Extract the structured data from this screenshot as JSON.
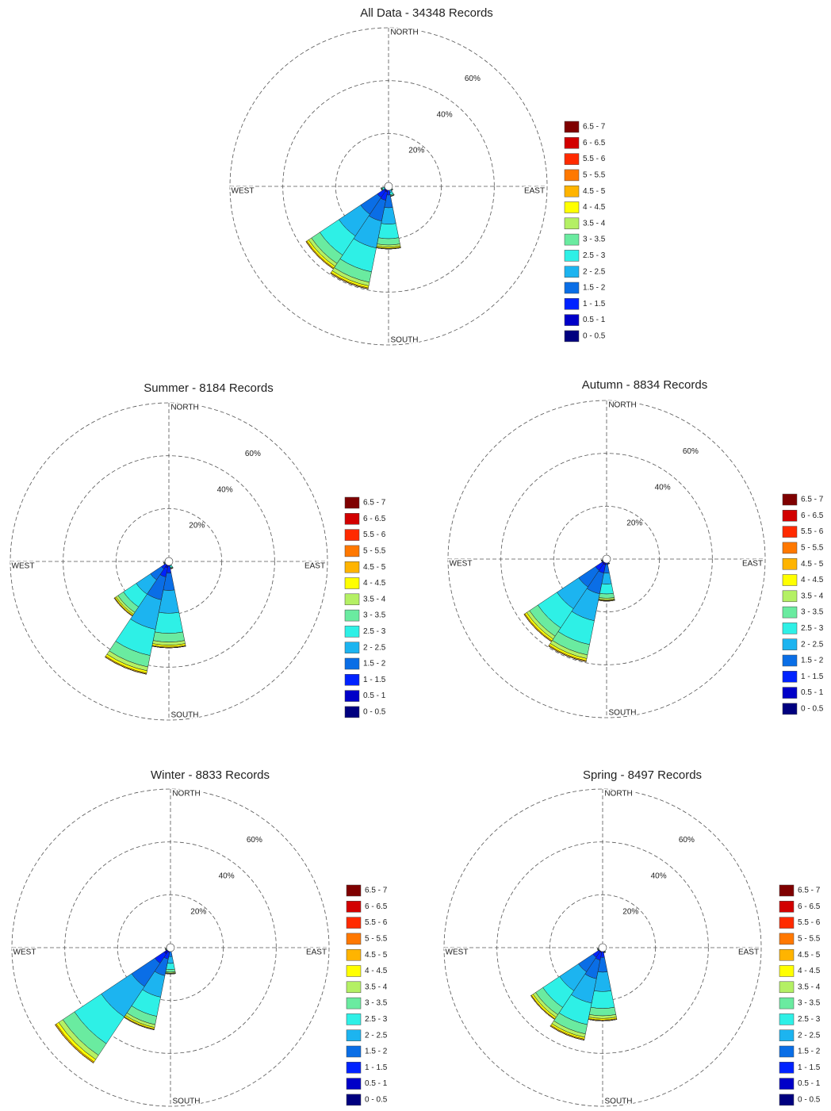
{
  "chart_data": [
    {
      "type": "windrose",
      "title": "All Data - 34348 Records",
      "direction_labels": [
        "NORTH",
        "EAST",
        "SOUTH",
        "WEST"
      ],
      "rlim": [
        0,
        60
      ],
      "rticks": [
        {
          "value": 20,
          "label": "20%"
        },
        {
          "value": 40,
          "label": "40%"
        },
        {
          "value": 60,
          "label": "60%"
        }
      ],
      "series": [
        {
          "name": "0 - 0.5",
          "color": "#00007f"
        },
        {
          "name": "0.5 - 1",
          "color": "#0000c8"
        },
        {
          "name": "1 - 1.5",
          "color": "#0022ff"
        },
        {
          "name": "1.5 - 2",
          "color": "#0a6ee6"
        },
        {
          "name": "2 - 2.5",
          "color": "#1cb4f0"
        },
        {
          "name": "2.5 - 3",
          "color": "#2ef0e6"
        },
        {
          "name": "3 - 3.5",
          "color": "#6aeba0"
        },
        {
          "name": "3.5 - 4",
          "color": "#b4f064"
        },
        {
          "name": "4 - 4.5",
          "color": "#ffff00"
        },
        {
          "name": "4.5 - 5",
          "color": "#ffb400"
        },
        {
          "name": "5 - 5.5",
          "color": "#ff7800"
        },
        {
          "name": "5.5 - 6",
          "color": "#ff2a00"
        },
        {
          "name": "6 - 6.5",
          "color": "#d20000"
        },
        {
          "name": "6.5 - 7",
          "color": "#7f0000"
        }
      ],
      "sectors": [
        {
          "direction": 135,
          "values": [
            0,
            0.1,
            0.2,
            0.4,
            0.5,
            0.5,
            0.2,
            0.1,
            0,
            0,
            0,
            0,
            0,
            0
          ]
        },
        {
          "direction": 157.5,
          "values": [
            0.1,
            0.2,
            0.3,
            0.8,
            1,
            0.9,
            0.4,
            0.1,
            0.1,
            0,
            0,
            0,
            0,
            0
          ]
        },
        {
          "direction": 180,
          "values": [
            0.4,
            1,
            1.9,
            4.8,
            6.2,
            5.5,
            2.4,
            0.8,
            0.5,
            0.2,
            0,
            0,
            0,
            0
          ]
        },
        {
          "direction": 202.5,
          "values": [
            0.6,
            1.6,
            3.2,
            8,
            10.4,
            9.2,
            4,
            1.4,
            0.8,
            0.4,
            0,
            0,
            0,
            0
          ]
        },
        {
          "direction": 225,
          "values": [
            0.6,
            1.5,
            3,
            7.6,
            9.9,
            8.7,
            3.8,
            1.3,
            0.8,
            0.4,
            0,
            0,
            0,
            0
          ]
        },
        {
          "direction": 247.5,
          "values": [
            0,
            0.1,
            0.2,
            0.6,
            0.8,
            0.7,
            0.3,
            0.1,
            0.1,
            0,
            0,
            0,
            0,
            0
          ]
        }
      ]
    },
    {
      "type": "windrose",
      "title": "Summer - 8184 Records",
      "direction_labels": [
        "NORTH",
        "EAST",
        "SOUTH",
        "WEST"
      ],
      "rlim": [
        0,
        60
      ],
      "rticks": [
        {
          "value": 20,
          "label": "20%"
        },
        {
          "value": 40,
          "label": "40%"
        },
        {
          "value": 60,
          "label": "60%"
        }
      ],
      "series": [
        {
          "name": "0 - 0.5",
          "color": "#00007f"
        },
        {
          "name": "0.5 - 1",
          "color": "#0000c8"
        },
        {
          "name": "1 - 1.5",
          "color": "#0022ff"
        },
        {
          "name": "1.5 - 2",
          "color": "#0a6ee6"
        },
        {
          "name": "2 - 2.5",
          "color": "#1cb4f0"
        },
        {
          "name": "2.5 - 3",
          "color": "#2ef0e6"
        },
        {
          "name": "3 - 3.5",
          "color": "#6aeba0"
        },
        {
          "name": "3.5 - 4",
          "color": "#b4f064"
        },
        {
          "name": "4 - 4.5",
          "color": "#ffff00"
        },
        {
          "name": "4.5 - 5",
          "color": "#ffb400"
        },
        {
          "name": "5 - 5.5",
          "color": "#ff7800"
        },
        {
          "name": "5.5 - 6",
          "color": "#ff2a00"
        },
        {
          "name": "6 - 6.5",
          "color": "#d20000"
        },
        {
          "name": "6.5 - 7",
          "color": "#7f0000"
        }
      ],
      "sectors": [
        {
          "direction": 135,
          "values": [
            0,
            0,
            0.1,
            0.2,
            0.3,
            0.2,
            0.1,
            0,
            0,
            0,
            0,
            0,
            0,
            0
          ]
        },
        {
          "direction": 157.5,
          "values": [
            0,
            0.1,
            0.2,
            0.6,
            0.8,
            0.7,
            0.3,
            0.1,
            0.1,
            0,
            0,
            0,
            0,
            0
          ]
        },
        {
          "direction": 180,
          "values": [
            0.5,
            1.3,
            2.6,
            6.6,
            8.6,
            7.6,
            3.3,
            1.2,
            0.7,
            0.3,
            0,
            0,
            0,
            0
          ]
        },
        {
          "direction": 202.5,
          "values": [
            0.7,
            1.8,
            3.5,
            8.8,
            11.4,
            10.1,
            4.4,
            1.5,
            0.9,
            0.4,
            0,
            0,
            0,
            0
          ]
        },
        {
          "direction": 225,
          "values": [
            0.4,
            1,
            2,
            5,
            6.5,
            5.8,
            2.5,
            0.9,
            0.5,
            0.3,
            0,
            0,
            0,
            0
          ]
        },
        {
          "direction": 247.5,
          "values": [
            0,
            0.1,
            0.2,
            0.4,
            0.5,
            0.5,
            0.2,
            0.1,
            0,
            0,
            0,
            0,
            0,
            0
          ]
        }
      ]
    },
    {
      "type": "windrose",
      "title": "Autumn - 8834 Records",
      "direction_labels": [
        "NORTH",
        "EAST",
        "SOUTH",
        "WEST"
      ],
      "rlim": [
        0,
        60
      ],
      "rticks": [
        {
          "value": 20,
          "label": "20%"
        },
        {
          "value": 40,
          "label": "40%"
        },
        {
          "value": 60,
          "label": "60%"
        }
      ],
      "series": [
        {
          "name": "0 - 0.5",
          "color": "#00007f"
        },
        {
          "name": "0.5 - 1",
          "color": "#0000c8"
        },
        {
          "name": "1 - 1.5",
          "color": "#0022ff"
        },
        {
          "name": "1.5 - 2",
          "color": "#0a6ee6"
        },
        {
          "name": "2 - 2.5",
          "color": "#1cb4f0"
        },
        {
          "name": "2.5 - 3",
          "color": "#2ef0e6"
        },
        {
          "name": "3 - 3.5",
          "color": "#6aeba0"
        },
        {
          "name": "3.5 - 4",
          "color": "#b4f064"
        },
        {
          "name": "4 - 4.5",
          "color": "#ffff00"
        },
        {
          "name": "4.5 - 5",
          "color": "#ffb400"
        },
        {
          "name": "5 - 5.5",
          "color": "#ff7800"
        },
        {
          "name": "5.5 - 6",
          "color": "#ff2a00"
        },
        {
          "name": "6 - 6.5",
          "color": "#d20000"
        },
        {
          "name": "6.5 - 7",
          "color": "#7f0000"
        }
      ],
      "sectors": [
        {
          "direction": 135,
          "values": [
            0,
            0,
            0.1,
            0.2,
            0.3,
            0.2,
            0.1,
            0,
            0,
            0,
            0,
            0,
            0,
            0
          ]
        },
        {
          "direction": 157.5,
          "values": [
            0,
            0.1,
            0.2,
            0.4,
            0.5,
            0.5,
            0.2,
            0.1,
            0,
            0,
            0,
            0,
            0,
            0
          ]
        },
        {
          "direction": 180,
          "values": [
            0.2,
            0.6,
            1.3,
            3.2,
            4.2,
            3.7,
            1.6,
            0.6,
            0.3,
            0.2,
            0,
            0,
            0,
            0
          ]
        },
        {
          "direction": 202.5,
          "values": [
            0.6,
            1.6,
            3.2,
            8,
            10.4,
            9.2,
            4,
            1.4,
            0.8,
            0.4,
            0,
            0,
            0,
            0
          ]
        },
        {
          "direction": 225,
          "values": [
            0.6,
            1.5,
            3,
            7.6,
            9.9,
            8.7,
            3.8,
            1.3,
            0.8,
            0.4,
            0,
            0,
            0,
            0
          ]
        },
        {
          "direction": 247.5,
          "values": [
            0,
            0.1,
            0.2,
            0.4,
            0.5,
            0.5,
            0.2,
            0.1,
            0,
            0,
            0,
            0,
            0,
            0
          ]
        }
      ]
    },
    {
      "type": "windrose",
      "title": "Winter - 8833 Records",
      "direction_labels": [
        "NORTH",
        "EAST",
        "SOUTH",
        "WEST"
      ],
      "rlim": [
        0,
        60
      ],
      "rticks": [
        {
          "value": 20,
          "label": "20%"
        },
        {
          "value": 40,
          "label": "40%"
        },
        {
          "value": 60,
          "label": "60%"
        }
      ],
      "series": [
        {
          "name": "0 - 0.5",
          "color": "#00007f"
        },
        {
          "name": "0.5 - 1",
          "color": "#0000c8"
        },
        {
          "name": "1 - 1.5",
          "color": "#0022ff"
        },
        {
          "name": "1.5 - 2",
          "color": "#0a6ee6"
        },
        {
          "name": "2 - 2.5",
          "color": "#1cb4f0"
        },
        {
          "name": "2.5 - 3",
          "color": "#2ef0e6"
        },
        {
          "name": "3 - 3.5",
          "color": "#6aeba0"
        },
        {
          "name": "3.5 - 4",
          "color": "#b4f064"
        },
        {
          "name": "4 - 4.5",
          "color": "#ffff00"
        },
        {
          "name": "4.5 - 5",
          "color": "#ffb400"
        },
        {
          "name": "5 - 5.5",
          "color": "#ff7800"
        },
        {
          "name": "5.5 - 6",
          "color": "#ff2a00"
        },
        {
          "name": "6 - 6.5",
          "color": "#d20000"
        },
        {
          "name": "6.5 - 7",
          "color": "#7f0000"
        }
      ],
      "sectors": [
        {
          "direction": 135,
          "values": [
            0,
            0,
            0.1,
            0.2,
            0.3,
            0.2,
            0.1,
            0,
            0,
            0,
            0,
            0,
            0,
            0
          ]
        },
        {
          "direction": 157.5,
          "values": [
            0,
            0,
            0.1,
            0.2,
            0.3,
            0.2,
            0.1,
            0,
            0,
            0,
            0,
            0,
            0,
            0
          ]
        },
        {
          "direction": 180,
          "values": [
            0.2,
            0.4,
            0.8,
            2,
            2.6,
            2.3,
            1,
            0.4,
            0.2,
            0.1,
            0,
            0,
            0,
            0
          ]
        },
        {
          "direction": 202.5,
          "values": [
            0.5,
            1.3,
            2.6,
            6.4,
            8.3,
            7.4,
            3.2,
            1.1,
            0.6,
            0.3,
            0,
            0,
            0,
            0
          ]
        },
        {
          "direction": 225,
          "values": [
            0.8,
            2.1,
            4.2,
            10.6,
            13.8,
            12.2,
            5.3,
            1.9,
            1.1,
            0.5,
            0,
            0,
            0,
            0
          ]
        },
        {
          "direction": 247.5,
          "values": [
            0,
            0.1,
            0.2,
            0.4,
            0.5,
            0.5,
            0.2,
            0.1,
            0,
            0,
            0,
            0,
            0,
            0
          ]
        }
      ]
    },
    {
      "type": "windrose",
      "title": "Spring - 8497 Records",
      "direction_labels": [
        "NORTH",
        "EAST",
        "SOUTH",
        "WEST"
      ],
      "rlim": [
        0,
        60
      ],
      "rticks": [
        {
          "value": 20,
          "label": "20%"
        },
        {
          "value": 40,
          "label": "40%"
        },
        {
          "value": 60,
          "label": "60%"
        }
      ],
      "series": [
        {
          "name": "0 - 0.5",
          "color": "#00007f"
        },
        {
          "name": "0.5 - 1",
          "color": "#0000c8"
        },
        {
          "name": "1 - 1.5",
          "color": "#0022ff"
        },
        {
          "name": "1.5 - 2",
          "color": "#0a6ee6"
        },
        {
          "name": "2 - 2.5",
          "color": "#1cb4f0"
        },
        {
          "name": "2.5 - 3",
          "color": "#2ef0e6"
        },
        {
          "name": "3 - 3.5",
          "color": "#6aeba0"
        },
        {
          "name": "3.5 - 4",
          "color": "#b4f064"
        },
        {
          "name": "4 - 4.5",
          "color": "#ffff00"
        },
        {
          "name": "4.5 - 5",
          "color": "#ffb400"
        },
        {
          "name": "5 - 5.5",
          "color": "#ff7800"
        },
        {
          "name": "5.5 - 6",
          "color": "#ff2a00"
        },
        {
          "name": "6 - 6.5",
          "color": "#d20000"
        },
        {
          "name": "6.5 - 7",
          "color": "#7f0000"
        }
      ],
      "sectors": [
        {
          "direction": 135,
          "values": [
            0,
            0,
            0.1,
            0.2,
            0.3,
            0.2,
            0.1,
            0,
            0,
            0,
            0,
            0,
            0,
            0
          ]
        },
        {
          "direction": 157.5,
          "values": [
            0,
            0.1,
            0.2,
            0.4,
            0.5,
            0.5,
            0.2,
            0.1,
            0,
            0,
            0,
            0,
            0,
            0
          ]
        },
        {
          "direction": 180,
          "values": [
            0.4,
            1.1,
            2.2,
            5.6,
            7.3,
            6.4,
            2.8,
            1,
            0.6,
            0.3,
            0,
            0,
            0,
            0
          ]
        },
        {
          "direction": 202.5,
          "values": [
            0.5,
            1.4,
            2.9,
            7.2,
            9.4,
            8.3,
            3.6,
            1.3,
            0.7,
            0.4,
            0,
            0,
            0,
            0
          ]
        },
        {
          "direction": 225,
          "values": [
            0.5,
            1.3,
            2.6,
            6.6,
            8.6,
            7.6,
            3.3,
            1.2,
            0.7,
            0.3,
            0,
            0,
            0,
            0
          ]
        },
        {
          "direction": 247.5,
          "values": [
            0,
            0.1,
            0.2,
            0.4,
            0.5,
            0.5,
            0.2,
            0.1,
            0,
            0,
            0,
            0,
            0,
            0
          ]
        }
      ]
    }
  ]
}
